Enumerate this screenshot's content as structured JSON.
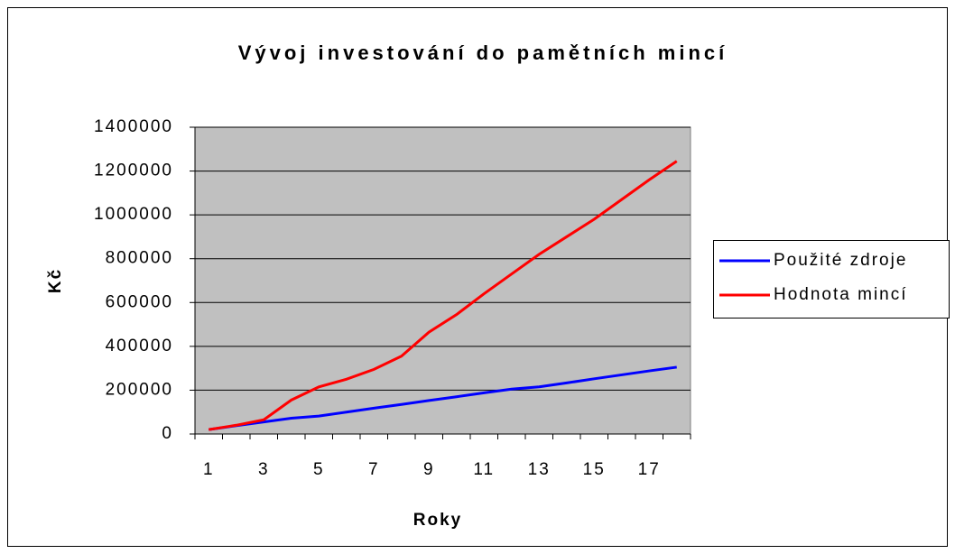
{
  "chart_data": {
    "type": "line",
    "title": "Vývoj investování do pamětních mincí",
    "x_label": "Roky",
    "y_label": "Kč",
    "categories": [
      1,
      null,
      3,
      null,
      5,
      null,
      7,
      null,
      9,
      null,
      11,
      null,
      13,
      null,
      15,
      null,
      17,
      null
    ],
    "series": [
      {
        "name": "Použité zdroje",
        "color": "#0000ff",
        "values": [
          20000,
          38000,
          55000,
          72000,
          82000,
          100000,
          118000,
          135000,
          153000,
          170000,
          188000,
          205000,
          215000,
          233000,
          252000,
          270000,
          288000,
          305000
        ]
      },
      {
        "name": "Hodnota mincí",
        "color": "#ff0000",
        "values": [
          20000,
          40000,
          65000,
          155000,
          215000,
          250000,
          295000,
          355000,
          465000,
          545000,
          640000,
          730000,
          820000,
          900000,
          980000,
          1070000,
          1160000,
          1245000
        ]
      }
    ],
    "ylim": [
      0,
      1400000
    ],
    "yticks": [
      0,
      200000,
      400000,
      600000,
      800000,
      1000000,
      1200000,
      1400000
    ],
    "grid": true,
    "legend": "right",
    "plot_background": "#c0c0c0"
  }
}
